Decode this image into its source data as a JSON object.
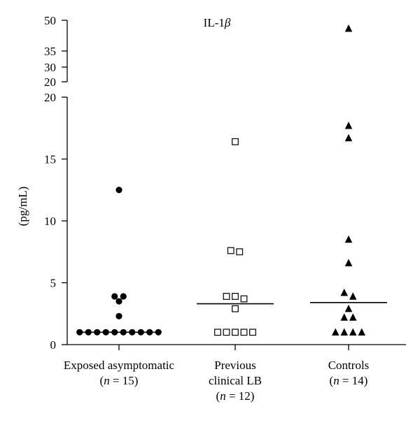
{
  "chart_data": {
    "type": "scatter",
    "title": "IL-1β",
    "ylabel": "(pg/mL)",
    "xlabel": "",
    "y_axis": {
      "broken": true,
      "lower_segment": {
        "ylim": [
          0,
          20
        ],
        "ticks": [
          "0",
          "5",
          "10",
          "15",
          "20"
        ]
      },
      "upper_segment": {
        "ylim": [
          20,
          50
        ],
        "ticks": [
          "20",
          "30",
          "35",
          "50"
        ]
      }
    },
    "grid": false,
    "legend": "none",
    "categories": [
      {
        "label_lines": [
          "Exposed asymptomatic",
          "(n = 15)"
        ],
        "marker": "filled-circle"
      },
      {
        "label_lines": [
          "Previous",
          "clinical LB",
          "(n = 12)"
        ],
        "marker": "open-square"
      },
      {
        "label_lines": [
          "Controls",
          "(n = 14)"
        ],
        "marker": "filled-triangle"
      }
    ],
    "series": [
      {
        "category": "Exposed asymptomatic",
        "values": [
          12.5,
          3.9,
          3.9,
          3.5,
          2.3,
          1.0,
          1.0,
          1.0,
          1.0,
          1.0,
          1.0,
          1.0,
          1.0,
          1.0,
          1.0
        ],
        "median": 1.0
      },
      {
        "category": "Previous clinical LB",
        "values": [
          16.4,
          7.6,
          7.5,
          3.9,
          3.9,
          3.7,
          2.9,
          1.0,
          1.0,
          1.0,
          1.0,
          1.0
        ],
        "median": 3.3
      },
      {
        "category": "Controls",
        "values": [
          46,
          17.7,
          16.7,
          8.5,
          6.6,
          4.2,
          3.9,
          2.9,
          2.2,
          2.2,
          1.0,
          1.0,
          1.0,
          1.0
        ],
        "median": 3.4
      }
    ]
  }
}
